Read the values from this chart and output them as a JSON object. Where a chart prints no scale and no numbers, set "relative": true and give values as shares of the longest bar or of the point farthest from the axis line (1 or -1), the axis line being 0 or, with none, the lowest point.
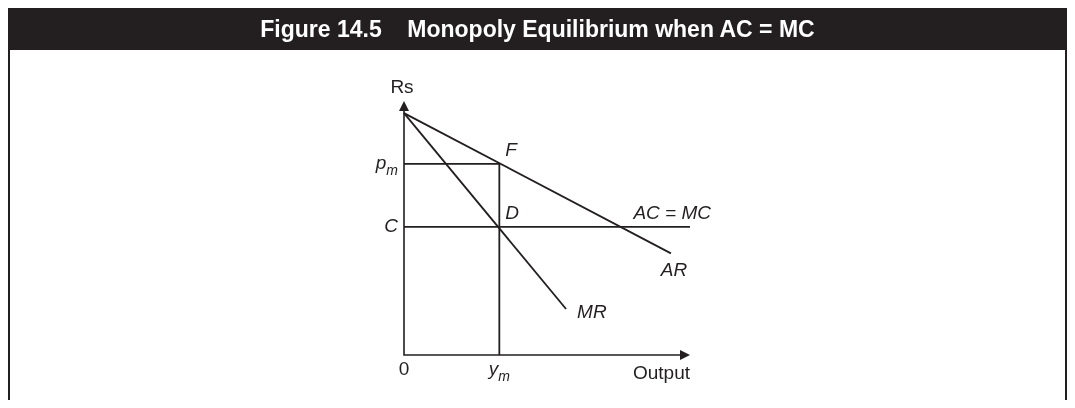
{
  "chart_data": {
    "type": "line",
    "title": "Figure 14.5    Monopoly Equilibrium when AC = MC",
    "xlabel": "Output",
    "ylabel": "Rs",
    "relative": true,
    "marker": "none",
    "categories": [
      "0",
      null,
      null,
      null,
      null,
      null,
      null,
      null,
      null,
      null,
      "y$_{m}$",
      null,
      null,
      null,
      null,
      null,
      null,
      null,
      null,
      null,
      null,
      null,
      null,
      null,
      null,
      null,
      null,
      null,
      null,
      null,
      null
    ],
    "annotations": [
      {
        "text": "p$_{m}$",
        "x": "0",
        "y": 0.79
      },
      {
        "text": "C",
        "x": "0",
        "y": 0.53
      },
      {
        "text": "F",
        "x": "y$_{m}$",
        "y": 0.79
      },
      {
        "text": "D",
        "x": "y$_{m}$",
        "y": 0.53
      }
    ],
    "series": [
      {
        "name": "AR",
        "color": "#231f20",
        "values": [
          1,
          null,
          null,
          null,
          null,
          null,
          null,
          null,
          null,
          null,
          null,
          null,
          null,
          null,
          null,
          null,
          null,
          null,
          null,
          null,
          null,
          null,
          null,
          null,
          null,
          null,
          null,
          null,
          0.42,
          null,
          null
        ]
      },
      {
        "name": "MR",
        "color": "#231f20",
        "values": [
          1,
          null,
          null,
          null,
          null,
          null,
          null,
          null,
          null,
          null,
          null,
          null,
          null,
          null,
          null,
          null,
          null,
          0.19,
          null,
          null,
          null,
          null,
          null,
          null,
          null,
          null,
          null,
          null,
          null,
          null,
          null
        ]
      },
      {
        "name": "AC = MC",
        "color": "#231f20",
        "values": [
          0.53,
          null,
          null,
          null,
          null,
          null,
          null,
          null,
          null,
          null,
          null,
          null,
          null,
          null,
          null,
          null,
          null,
          null,
          null,
          null,
          null,
          null,
          null,
          null,
          null,
          null,
          null,
          null,
          null,
          null,
          0.53
        ]
      },
      {
        "type": "step",
        "color": "#231f20",
        "values": [
          0.79,
          null,
          null,
          null,
          null,
          null,
          null,
          null,
          null,
          null,
          0,
          null,
          null,
          null,
          null,
          null,
          null,
          null,
          null,
          null,
          null,
          null,
          null,
          null,
          null,
          null,
          null,
          null,
          null,
          null,
          null
        ]
      }
    ]
  }
}
